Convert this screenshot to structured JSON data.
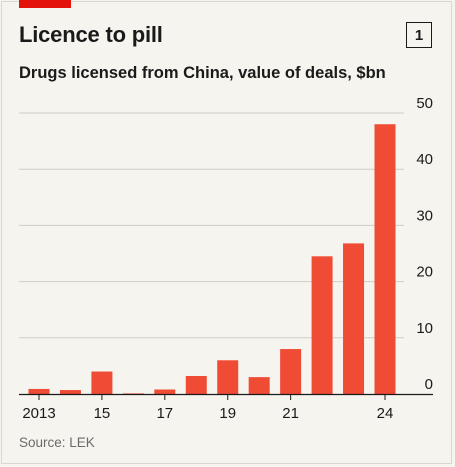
{
  "figure": {
    "number": "1",
    "source": "Source: LEK"
  },
  "chart_data": {
    "type": "bar",
    "title": "Licence to pill",
    "subtitle": "Drugs licensed from China, value of deals, $bn",
    "categories": [
      "2013",
      "2014",
      "2015",
      "2016",
      "2017",
      "2018",
      "2019",
      "2020",
      "2021",
      "2022",
      "2023",
      "2024"
    ],
    "x_tick_labels": [
      {
        "category": "2013",
        "label": "2013"
      },
      {
        "category": "2015",
        "label": "15"
      },
      {
        "category": "2017",
        "label": "17"
      },
      {
        "category": "2019",
        "label": "19"
      },
      {
        "category": "2021",
        "label": "21"
      },
      {
        "category": "2024",
        "label": "24"
      }
    ],
    "values": [
      0.9,
      0.7,
      4.0,
      0.1,
      0.8,
      3.2,
      6.0,
      3.0,
      8.0,
      24.5,
      26.8,
      48.0
    ],
    "ylim": [
      0,
      50
    ],
    "yticks": [
      0,
      10,
      20,
      30,
      40,
      50
    ],
    "y_axis_position": "right",
    "grid": true,
    "bar_color": "#ef4b35",
    "grid_color": "#cfcdc6",
    "accent_color": "#e3120b"
  }
}
